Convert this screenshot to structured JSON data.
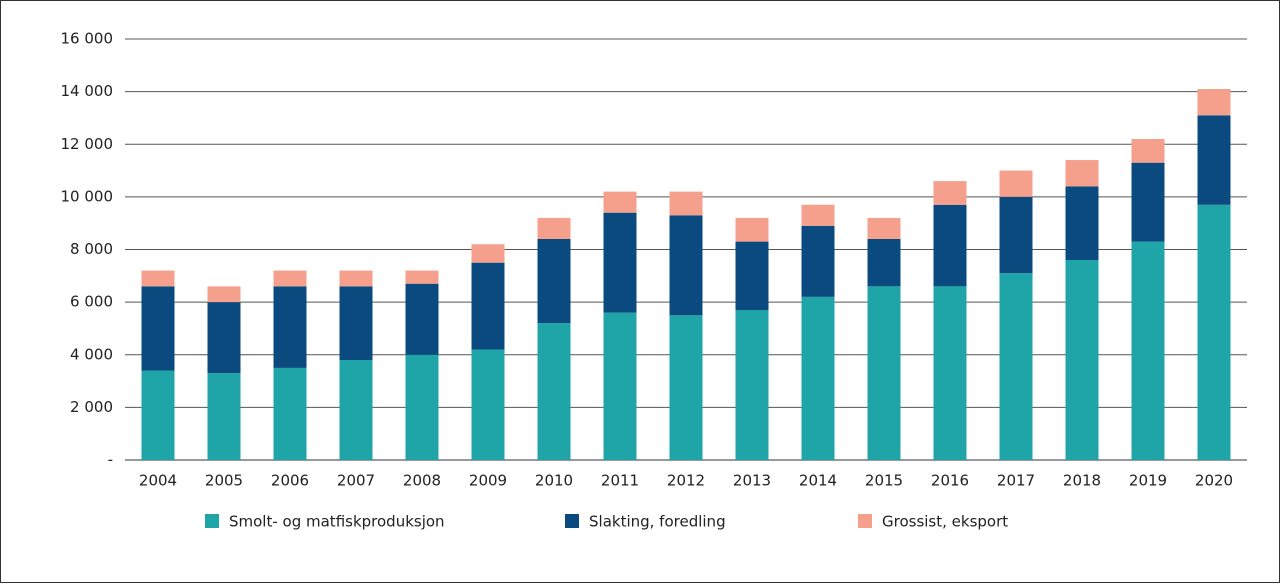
{
  "chart_data": {
    "type": "stacked_bar",
    "categories": [
      "2004",
      "2005",
      "2006",
      "2007",
      "2008",
      "2009",
      "2010",
      "2011",
      "2012",
      "2013",
      "2014",
      "2015",
      "2016",
      "2017",
      "2018",
      "2019",
      "2020"
    ],
    "series": [
      {
        "name": "Smolt- og matfiskproduksjon",
        "color": "#1fa5a8",
        "values": [
          3400,
          3300,
          3500,
          3800,
          4000,
          4200,
          5200,
          5600,
          5500,
          5700,
          6200,
          6600,
          6600,
          7100,
          7600,
          8300,
          9700
        ]
      },
      {
        "name": "Slakting, foredling",
        "color": "#0b4a7e",
        "values": [
          3200,
          2700,
          3100,
          2800,
          2700,
          3300,
          3200,
          3800,
          3800,
          2600,
          2700,
          1800,
          3100,
          2900,
          2800,
          3000,
          3400
        ]
      },
      {
        "name": "Grossist, eksport",
        "color": "#f4a08d",
        "values": [
          600,
          600,
          600,
          600,
          500,
          700,
          800,
          800,
          900,
          900,
          800,
          800,
          900,
          1000,
          1000,
          900,
          1000
        ]
      }
    ],
    "ylim": [
      0,
      16000
    ],
    "yticks": [
      {
        "value": 0,
        "label": "-"
      },
      {
        "value": 2000,
        "label": "2 000"
      },
      {
        "value": 4000,
        "label": "4 000"
      },
      {
        "value": 6000,
        "label": "6 000"
      },
      {
        "value": 8000,
        "label": "8 000"
      },
      {
        "value": 10000,
        "label": "10 000"
      },
      {
        "value": 12000,
        "label": "12 000"
      },
      {
        "value": 14000,
        "label": "14 000"
      },
      {
        "value": 16000,
        "label": "16 000"
      }
    ],
    "grid": true,
    "legend": "bottom"
  }
}
